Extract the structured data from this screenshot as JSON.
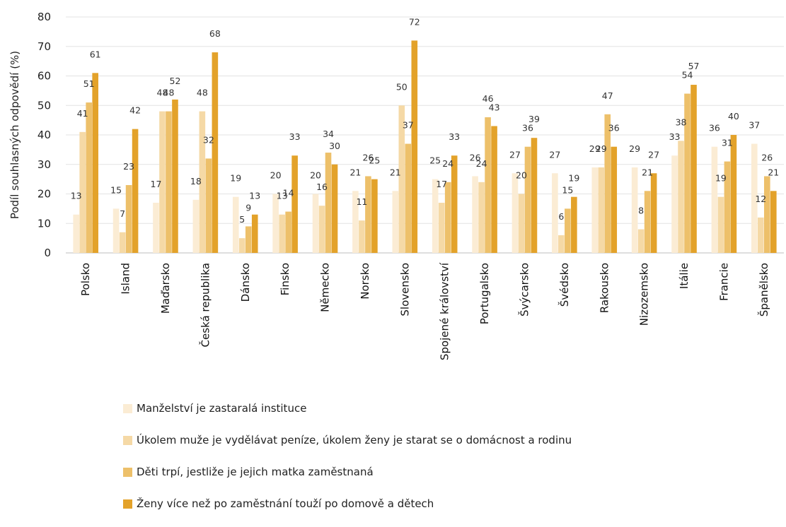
{
  "chart_data": {
    "type": "bar",
    "ylabel": "Podíl souhlasných odpovědí  (%)",
    "ylim": [
      0,
      80
    ],
    "yticks": [
      0,
      10,
      20,
      30,
      40,
      50,
      60,
      70,
      80
    ],
    "grid": true,
    "legend_position": "bottom",
    "categories": [
      "Polsko",
      "Island",
      "Maďarsko",
      "Česká republika",
      "Dánsko",
      "Finsko",
      "Německo",
      "Norsko",
      "Slovensko",
      "Spojené království",
      "Portugalsko",
      "Švýcarsko",
      "Švédsko",
      "Rakousko",
      "Nizozemsko",
      "Itálie",
      "Francie",
      "Španělsko"
    ],
    "series": [
      {
        "name": "Manželství je zastaralá instituce",
        "color": "#fbecd4",
        "values": [
          13,
          15,
          17,
          18,
          19,
          20,
          20,
          21,
          21,
          25,
          26,
          27,
          27,
          29,
          29,
          33,
          36,
          37
        ]
      },
      {
        "name": "Úkolem muže je vydělávat peníze, úkolem ženy je starat se o domácnost a rodinu",
        "color": "#f5d9a6",
        "values": [
          41,
          7,
          48,
          48,
          5,
          13,
          16,
          11,
          50,
          17,
          24,
          20,
          6,
          29,
          8,
          38,
          19,
          12
        ]
      },
      {
        "name": "Děti trpí, jestliže je jejich matka zaměstnaná",
        "color": "#edc06a",
        "values": [
          51,
          23,
          48,
          32,
          9,
          14,
          34,
          26,
          37,
          24,
          46,
          36,
          15,
          47,
          21,
          54,
          31,
          26
        ]
      },
      {
        "name": "Ženy více než po zaměstnání touží po domově a dětech",
        "color": "#e3a22a",
        "values": [
          61,
          42,
          52,
          68,
          13,
          33,
          30,
          25,
          72,
          33,
          43,
          39,
          19,
          36,
          27,
          57,
          40,
          21
        ]
      }
    ]
  }
}
